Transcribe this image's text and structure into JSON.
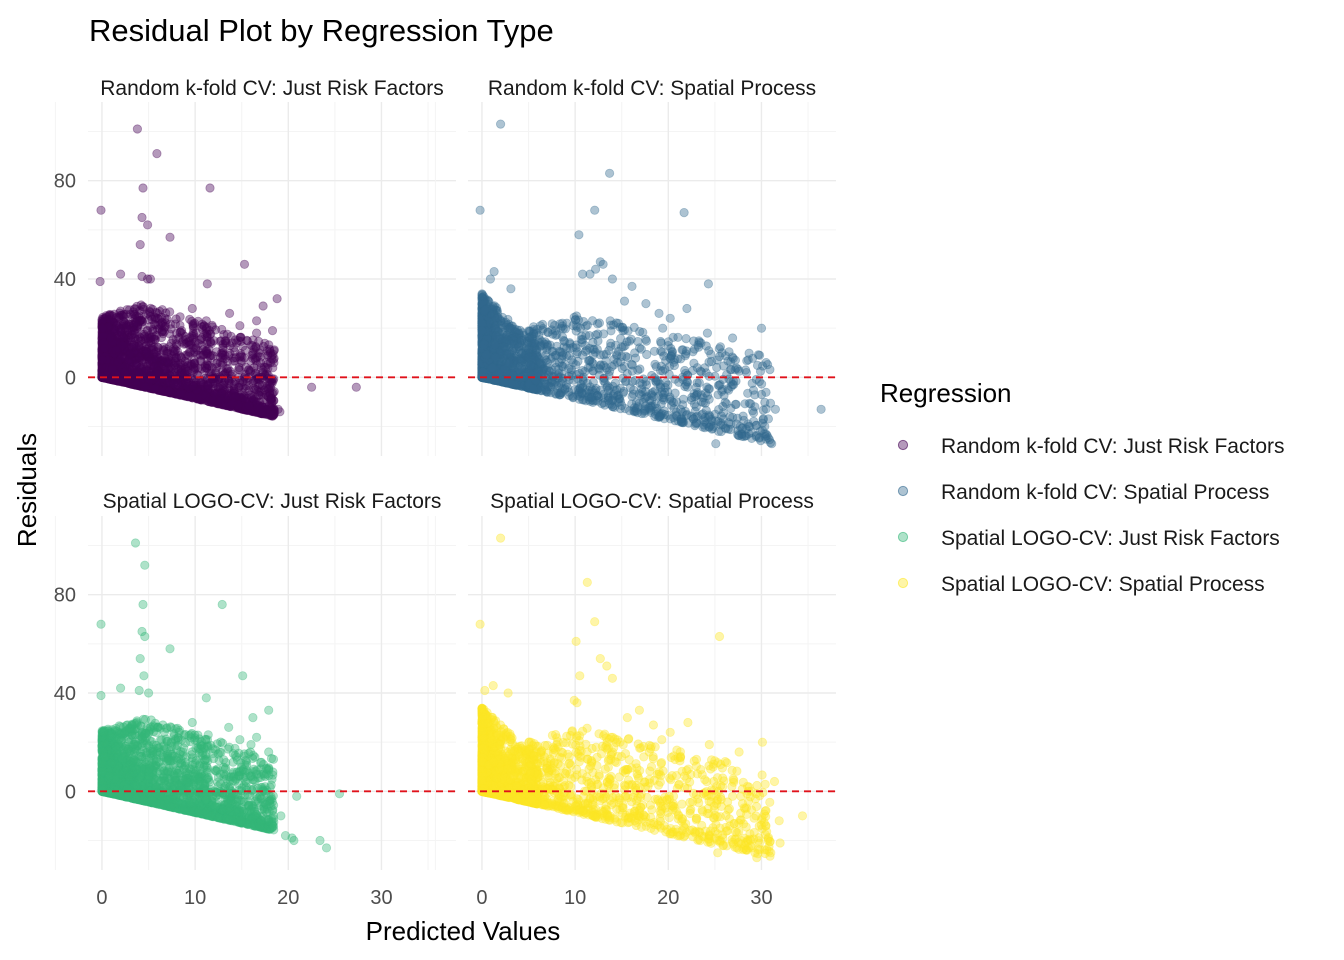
{
  "chart_data": {
    "type": "scatter",
    "title": "Residual Plot by Regression Type",
    "xlabel": "Predicted Values",
    "ylabel": "Residuals",
    "legend": {
      "title": "Regression",
      "placement": "right"
    },
    "xlim": [
      -1.5,
      38
    ],
    "ylim": [
      -32,
      112
    ],
    "x_ticks": [
      "0",
      "10",
      "20",
      "30"
    ],
    "y_ticks": [
      "0",
      "40",
      "80"
    ],
    "reference_line": {
      "y": 0,
      "color": "#e0121b",
      "style": "dashed"
    },
    "point_alpha": 0.4,
    "series": [
      {
        "name": "Random k-fold CV: Just Risk Factors",
        "color": "#440154",
        "highlight_points": [
          [
            3.8,
            101
          ],
          [
            5.9,
            91
          ],
          [
            4.4,
            77
          ],
          [
            11.6,
            77
          ],
          [
            -0.1,
            68
          ],
          [
            4.3,
            65
          ],
          [
            4.9,
            62
          ],
          [
            7.3,
            57
          ],
          [
            4.1,
            54
          ],
          [
            15.3,
            46
          ],
          [
            2.0,
            42
          ],
          [
            4.3,
            41
          ],
          [
            4.9,
            40
          ],
          [
            5.2,
            40
          ],
          [
            -0.2,
            39
          ],
          [
            11.3,
            38
          ],
          [
            18.8,
            32
          ],
          [
            17.3,
            29
          ],
          [
            9.7,
            28
          ],
          [
            13.7,
            26
          ],
          [
            16.6,
            23
          ],
          [
            11.2,
            23
          ],
          [
            14.8,
            21
          ],
          [
            18.3,
            19
          ],
          [
            16.6,
            18
          ],
          [
            15.3,
            8
          ],
          [
            16.1,
            9
          ],
          [
            17.0,
            6
          ],
          [
            17.2,
            0
          ],
          [
            18.0,
            -3
          ],
          [
            22.5,
            -4
          ],
          [
            27.3,
            -4
          ],
          [
            18.1,
            -9
          ],
          [
            18.9,
            -13
          ],
          [
            17.2,
            -14
          ],
          [
            18.4,
            -15
          ],
          [
            19.1,
            -14
          ],
          [
            16.4,
            -5
          ],
          [
            13.2,
            -8
          ]
        ]
      },
      {
        "name": "Random k-fold CV: Spatial Process",
        "color": "#31688e",
        "highlight_points": [
          [
            2.0,
            103
          ],
          [
            13.7,
            83
          ],
          [
            12.1,
            68
          ],
          [
            -0.2,
            68
          ],
          [
            21.7,
            67
          ],
          [
            10.4,
            58
          ],
          [
            12.7,
            47
          ],
          [
            13.0,
            46
          ],
          [
            12.2,
            44
          ],
          [
            10.8,
            42
          ],
          [
            11.6,
            42
          ],
          [
            14.0,
            40
          ],
          [
            16.1,
            37
          ],
          [
            24.3,
            38
          ],
          [
            1.3,
            43
          ],
          [
            0.9,
            40
          ],
          [
            3.1,
            36
          ],
          [
            15.3,
            31
          ],
          [
            17.6,
            30
          ],
          [
            19.0,
            26
          ],
          [
            22.0,
            28
          ],
          [
            20.2,
            24
          ],
          [
            19.4,
            20
          ],
          [
            24.2,
            18
          ],
          [
            26.9,
            16
          ],
          [
            30.0,
            20
          ],
          [
            30.5,
            6
          ],
          [
            28.3,
            3
          ],
          [
            25.2,
            4
          ],
          [
            27.0,
            -3
          ],
          [
            36.4,
            -13
          ],
          [
            31.5,
            -13
          ],
          [
            30.4,
            -24
          ],
          [
            31.1,
            -27
          ],
          [
            27.9,
            -24
          ],
          [
            27.3,
            -19
          ],
          [
            25.1,
            -27
          ],
          [
            25.4,
            -22
          ],
          [
            26.6,
            -16
          ],
          [
            22.7,
            -17
          ],
          [
            23.0,
            -12
          ],
          [
            20.9,
            -10
          ],
          [
            19.3,
            -6
          ],
          [
            29.3,
            -12
          ]
        ]
      },
      {
        "name": "Spatial LOGO-CV: Just Risk Factors",
        "color": "#35b779",
        "highlight_points": [
          [
            3.6,
            101
          ],
          [
            4.6,
            92
          ],
          [
            4.4,
            76
          ],
          [
            12.9,
            76
          ],
          [
            -0.1,
            68
          ],
          [
            4.3,
            65
          ],
          [
            4.6,
            63
          ],
          [
            7.3,
            58
          ],
          [
            4.1,
            54
          ],
          [
            4.5,
            47
          ],
          [
            15.1,
            47
          ],
          [
            2.0,
            42
          ],
          [
            4.0,
            41
          ],
          [
            5.0,
            40
          ],
          [
            -0.1,
            39
          ],
          [
            11.2,
            38
          ],
          [
            17.9,
            33
          ],
          [
            16.2,
            30
          ],
          [
            9.7,
            28
          ],
          [
            13.6,
            26
          ],
          [
            16.6,
            22
          ],
          [
            11.4,
            23
          ],
          [
            14.8,
            21
          ],
          [
            16.0,
            19
          ],
          [
            17.9,
            16
          ],
          [
            15.5,
            12
          ],
          [
            16.3,
            9
          ],
          [
            17.5,
            6
          ],
          [
            20.9,
            -2
          ],
          [
            25.5,
            -1
          ],
          [
            23.4,
            -20
          ],
          [
            24.1,
            -23
          ],
          [
            20.6,
            -20
          ],
          [
            19.7,
            -18
          ],
          [
            20.4,
            -19
          ],
          [
            17.1,
            -12
          ],
          [
            19.2,
            -10
          ],
          [
            16.5,
            -4
          ],
          [
            13.7,
            -7
          ]
        ]
      },
      {
        "name": "Spatial LOGO-CV: Spatial Process",
        "color": "#fde725",
        "highlight_points": [
          [
            2.0,
            103
          ],
          [
            11.3,
            85
          ],
          [
            12.1,
            69
          ],
          [
            -0.2,
            68
          ],
          [
            25.5,
            63
          ],
          [
            10.1,
            61
          ],
          [
            12.7,
            54
          ],
          [
            13.4,
            51
          ],
          [
            10.5,
            47
          ],
          [
            14.0,
            46
          ],
          [
            1.2,
            43
          ],
          [
            0.3,
            41
          ],
          [
            2.8,
            40
          ],
          [
            9.9,
            37
          ],
          [
            10.2,
            36
          ],
          [
            16.9,
            33
          ],
          [
            15.6,
            30
          ],
          [
            18.4,
            27
          ],
          [
            22.1,
            28
          ],
          [
            20.2,
            24
          ],
          [
            19.3,
            21
          ],
          [
            24.4,
            19
          ],
          [
            27.6,
            16
          ],
          [
            30.1,
            20
          ],
          [
            31.4,
            4
          ],
          [
            28.5,
            2
          ],
          [
            25.2,
            2
          ],
          [
            28.6,
            0
          ],
          [
            34.4,
            -10
          ],
          [
            31.9,
            -12
          ],
          [
            30.7,
            -20
          ],
          [
            31.0,
            -25
          ],
          [
            28.6,
            -23
          ],
          [
            27.8,
            -20
          ],
          [
            25.3,
            -25
          ],
          [
            25.5,
            -20
          ],
          [
            26.6,
            -14
          ],
          [
            22.9,
            -17
          ],
          [
            23.0,
            -11
          ],
          [
            21.1,
            -10
          ],
          [
            19.2,
            -6
          ],
          [
            29.4,
            -10
          ],
          [
            32.0,
            -21
          ],
          [
            29.5,
            -27
          ]
        ]
      }
    ],
    "panels": [
      {
        "label": "Random k-fold CV: Just Risk Factors",
        "series_index": 0,
        "cloud": "risk"
      },
      {
        "label": "Random k-fold CV: Spatial Process",
        "series_index": 1,
        "cloud": "spatial"
      },
      {
        "label": "Spatial LOGO-CV: Just Risk Factors",
        "series_index": 2,
        "cloud": "risk"
      },
      {
        "label": "Spatial LOGO-CV: Spatial Process",
        "series_index": 3,
        "cloud": "spatial"
      }
    ]
  }
}
